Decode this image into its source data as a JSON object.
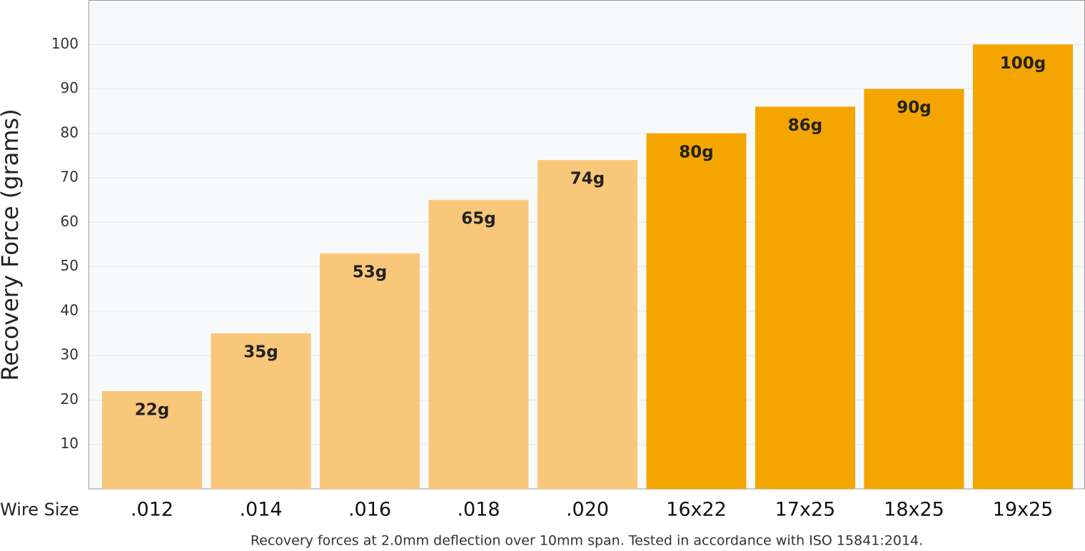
{
  "chart_data": {
    "type": "bar",
    "y_label": "Recovery Force (grams)",
    "x_label": "Wire Size",
    "footnote": "Recovery forces at 2.0mm deflection over 10mm span. Tested in accordance with ISO 15841:2014.",
    "categories": [
      ".012",
      ".014",
      ".016",
      ".018",
      ".020",
      "16x22",
      "17x25",
      "18x25",
      "19x25"
    ],
    "values": [
      22,
      35,
      53,
      65,
      74,
      80,
      86,
      90,
      100
    ],
    "value_labels": [
      "22g",
      "35g",
      "53g",
      "65g",
      "74g",
      "80g",
      "86g",
      "90g",
      "100g"
    ],
    "colors": [
      "#f9c77a",
      "#f9c77a",
      "#f9c77a",
      "#f9c77a",
      "#f9c77a",
      "#f5a500",
      "#f5a500",
      "#f5a500",
      "#f5a500"
    ],
    "ylim": [
      0,
      110
    ],
    "yticks": [
      10,
      20,
      30,
      40,
      50,
      60,
      70,
      80,
      90,
      100
    ],
    "grid": true
  }
}
